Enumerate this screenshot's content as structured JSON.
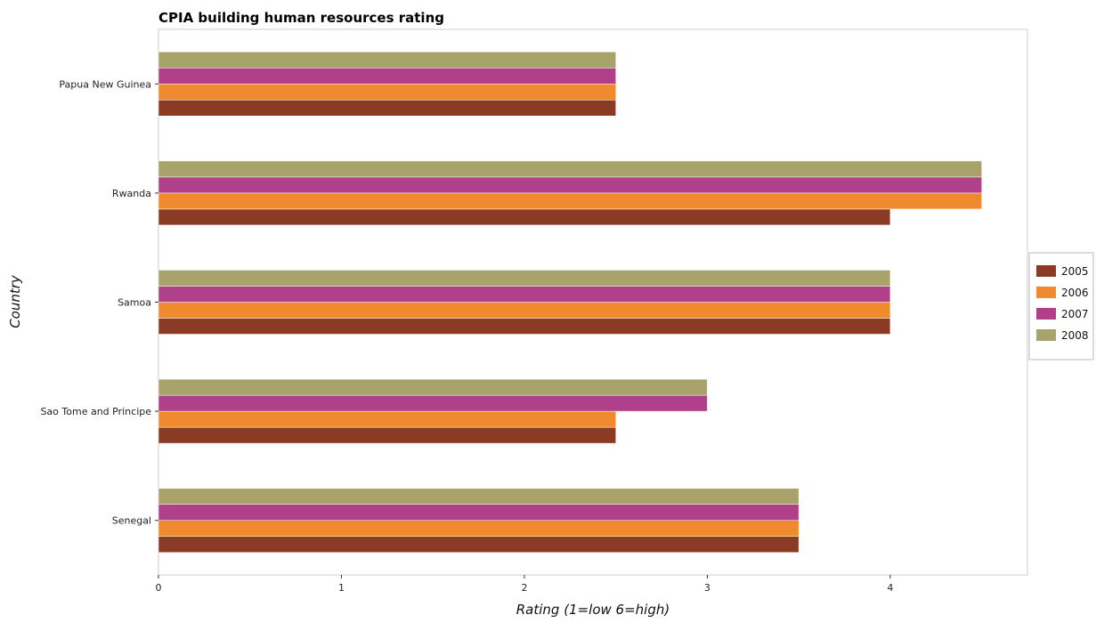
{
  "chart_data": {
    "type": "bar",
    "orientation": "horizontal",
    "title": "CPIA building human resources rating",
    "xlabel": "Rating (1=low 6=high)",
    "ylabel": "Country",
    "categories": [
      "Papua New Guinea",
      "Rwanda",
      "Samoa",
      "Sao Tome and Principe",
      "Senegal"
    ],
    "series": [
      {
        "name": "2005",
        "color": "#8b3a24",
        "values": [
          2.5,
          4.0,
          4.0,
          2.5,
          3.5
        ]
      },
      {
        "name": "2006",
        "color": "#f08a2e",
        "values": [
          2.5,
          4.5,
          4.0,
          2.5,
          3.5
        ]
      },
      {
        "name": "2007",
        "color": "#b0408a",
        "values": [
          2.5,
          4.5,
          4.0,
          3.0,
          3.5
        ]
      },
      {
        "name": "2008",
        "color": "#a8a36a",
        "values": [
          2.5,
          4.5,
          4.0,
          3.0,
          3.5
        ]
      }
    ],
    "xlim": [
      0,
      4.75
    ],
    "xticks": [
      0,
      1,
      2,
      3,
      4
    ],
    "grid": false,
    "legend_position": "right"
  }
}
